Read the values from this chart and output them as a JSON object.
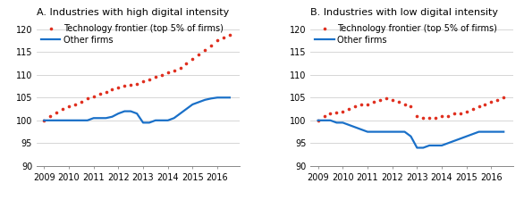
{
  "panel_A": {
    "title": "A. Industries with high digital intensity",
    "years": [
      2009,
      2009.25,
      2009.5,
      2009.75,
      2010,
      2010.25,
      2010.5,
      2010.75,
      2011,
      2011.25,
      2011.5,
      2011.75,
      2012,
      2012.25,
      2012.5,
      2012.75,
      2013,
      2013.25,
      2013.5,
      2013.75,
      2014,
      2014.25,
      2014.5,
      2014.75,
      2015,
      2015.25,
      2015.5,
      2015.75,
      2016,
      2016.25,
      2016.5
    ],
    "frontier": [
      100,
      101.0,
      101.8,
      102.5,
      103.0,
      103.5,
      104.0,
      104.8,
      105.2,
      105.8,
      106.2,
      106.8,
      107.2,
      107.5,
      107.8,
      108.0,
      108.5,
      109.0,
      109.5,
      110.0,
      110.5,
      111.0,
      111.5,
      112.5,
      113.5,
      114.5,
      115.5,
      116.5,
      117.5,
      118.2,
      118.8
    ],
    "other": [
      100,
      100,
      100,
      100,
      100,
      100,
      100,
      100,
      100.5,
      100.5,
      100.5,
      100.8,
      101.5,
      102.0,
      102.0,
      101.5,
      99.5,
      99.5,
      100.0,
      100.0,
      100.0,
      100.5,
      101.5,
      102.5,
      103.5,
      104.0,
      104.5,
      104.8,
      105.0,
      105.0,
      105.0
    ]
  },
  "panel_B": {
    "title": "B. Industries with low digital intensity",
    "years": [
      2009,
      2009.25,
      2009.5,
      2009.75,
      2010,
      2010.25,
      2010.5,
      2010.75,
      2011,
      2011.25,
      2011.5,
      2011.75,
      2012,
      2012.25,
      2012.5,
      2012.75,
      2013,
      2013.25,
      2013.5,
      2013.75,
      2014,
      2014.25,
      2014.5,
      2014.75,
      2015,
      2015.25,
      2015.5,
      2015.75,
      2016,
      2016.25,
      2016.5
    ],
    "frontier": [
      100,
      101.0,
      101.5,
      101.8,
      102.0,
      102.5,
      103.0,
      103.5,
      103.5,
      104.0,
      104.5,
      104.8,
      104.5,
      104.0,
      103.5,
      103.0,
      101.0,
      100.5,
      100.5,
      100.5,
      101.0,
      101.0,
      101.5,
      101.5,
      102.0,
      102.5,
      103.0,
      103.5,
      104.0,
      104.5,
      105.0
    ],
    "other": [
      100,
      100,
      100,
      99.5,
      99.5,
      99.0,
      98.5,
      98.0,
      97.5,
      97.5,
      97.5,
      97.5,
      97.5,
      97.5,
      97.5,
      96.5,
      94.0,
      94.0,
      94.5,
      94.5,
      94.5,
      95.0,
      95.5,
      96.0,
      96.5,
      97.0,
      97.5,
      97.5,
      97.5,
      97.5,
      97.5
    ]
  },
  "legend_frontier": "Technology frontier (top 5% of firms)",
  "legend_other": "Other firms",
  "ylim": [
    90,
    122
  ],
  "yticks": [
    90,
    95,
    100,
    105,
    110,
    115,
    120
  ],
  "xlim": [
    2008.7,
    2016.9
  ],
  "xtick_years": [
    2009,
    2010,
    2011,
    2012,
    2013,
    2014,
    2015,
    2016
  ],
  "frontier_color": "#e03020",
  "other_color": "#1a70c8",
  "bg_color": "#ffffff",
  "title_fontsize": 8,
  "legend_fontsize": 7,
  "tick_fontsize": 7,
  "grid_color": "#d0d0d0"
}
